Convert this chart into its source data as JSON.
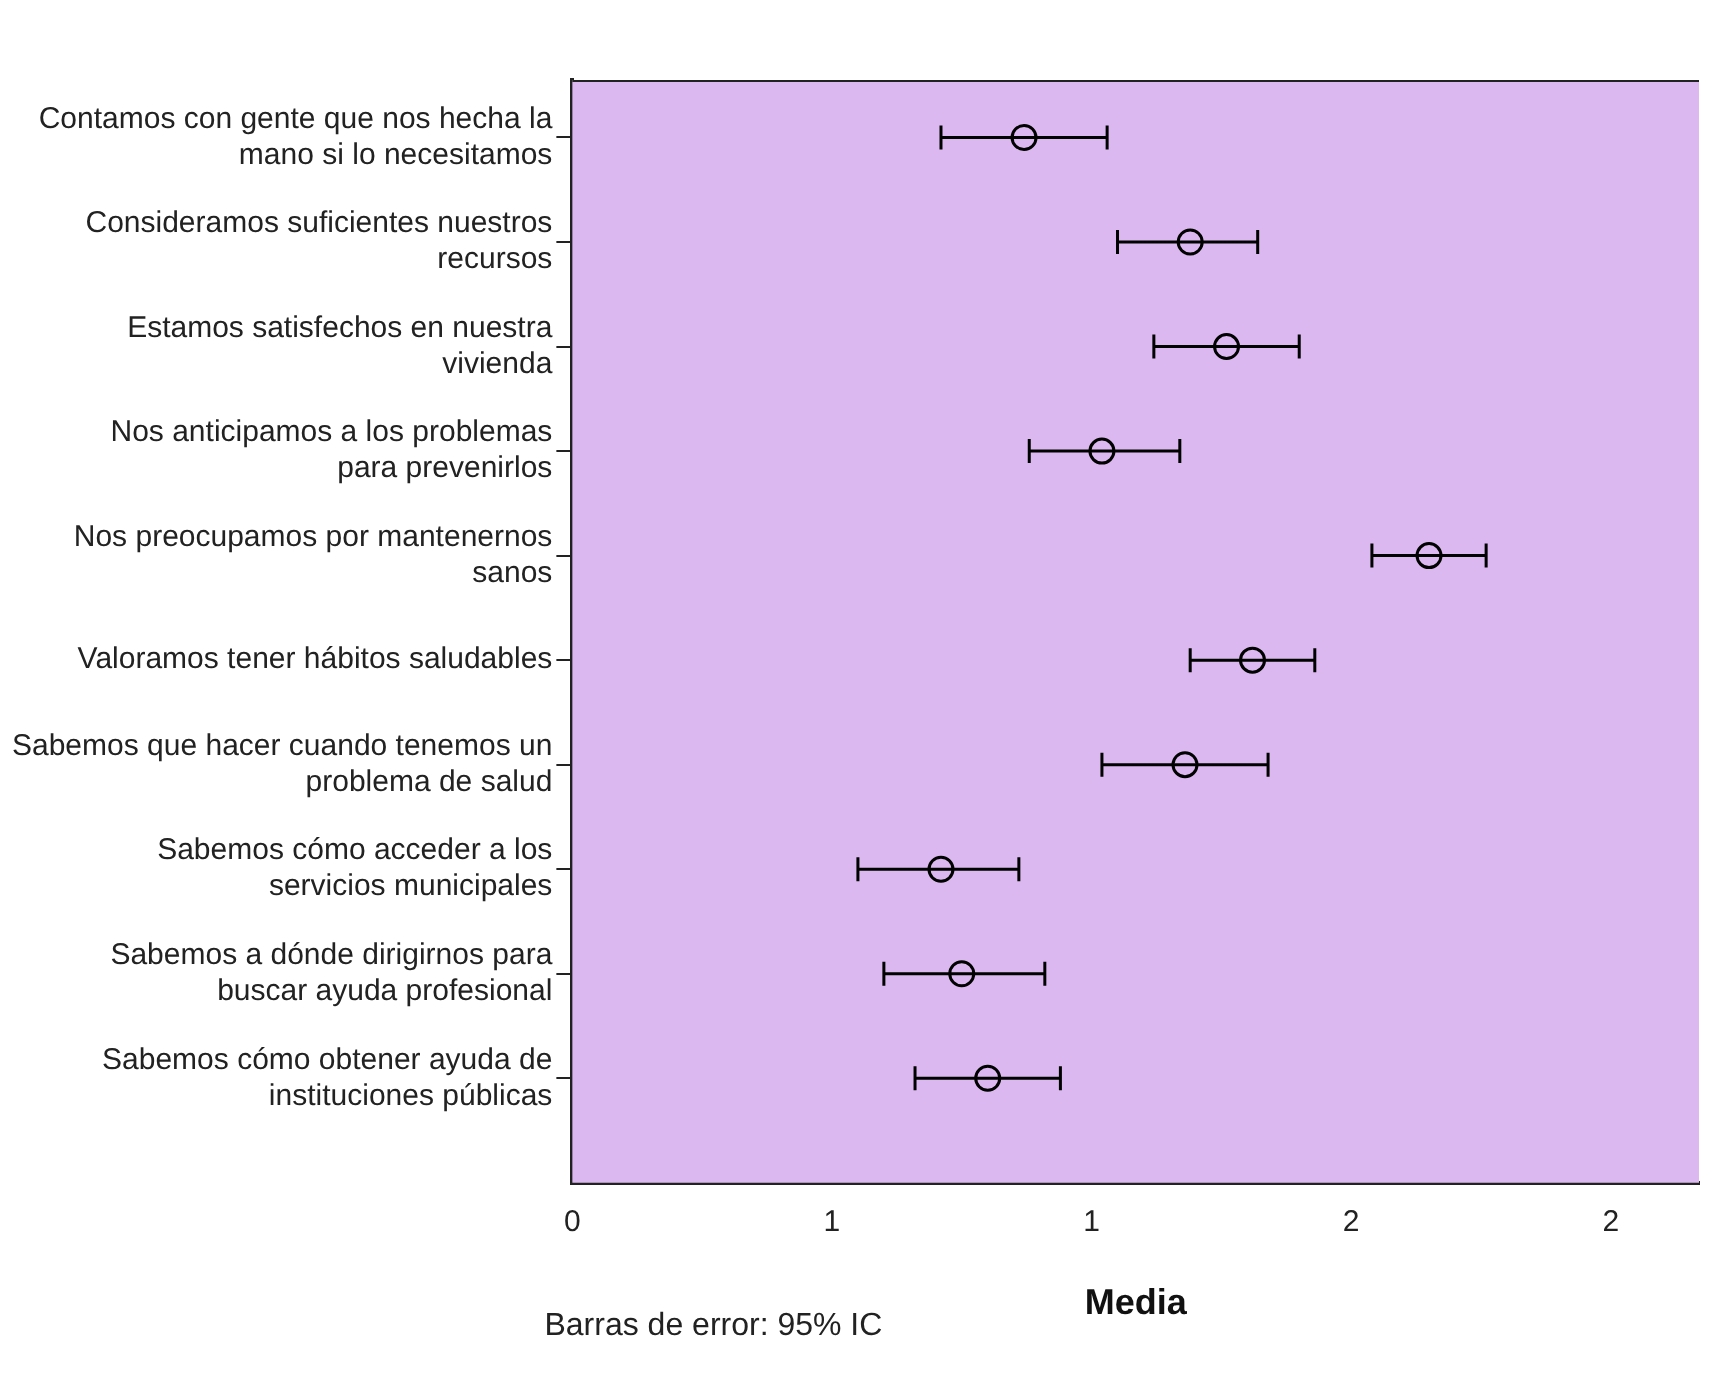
{
  "chart_data": {
    "type": "scatter",
    "orientation": "horizontal",
    "categories": [
      "Contamos con gente que nos hecha la mano si lo necesitamos",
      "Consideramos suficientes nuestros recursos",
      "Estamos satisfechos en nuestra vivienda",
      "Nos anticipamos a los problemas para prevenirlos",
      "Nos preocupamos por mantenernos sanos",
      "Valoramos tener hábitos saludables",
      "Sabemos que hacer cuando tenemos un problema de salud",
      "Sabemos cómo acceder a los servicios municipales",
      "Sabemos a dónde dirigirnos para buscar ayuda profesional",
      "Sabemos cómo obtener ayuda de instituciones públicas"
    ],
    "values": [
      0.87,
      1.19,
      1.26,
      1.02,
      1.65,
      1.31,
      1.18,
      0.71,
      0.75,
      0.8
    ],
    "errors": [
      [
        0.71,
        1.03
      ],
      [
        1.05,
        1.32
      ],
      [
        1.12,
        1.4
      ],
      [
        0.88,
        1.17
      ],
      [
        1.54,
        1.76
      ],
      [
        1.19,
        1.43
      ],
      [
        1.02,
        1.34
      ],
      [
        0.55,
        0.86
      ],
      [
        0.6,
        0.91
      ],
      [
        0.66,
        0.94
      ]
    ],
    "color": "#000000",
    "marker": "circle",
    "xlim": [
      0,
      2.17
    ],
    "xticks": [
      0,
      {
        "value": 0.5,
        "label": "1"
      },
      1,
      {
        "value": 1.5,
        "label": "2"
      },
      2
    ],
    "xlabel": "Media",
    "annotations": [
      "Barras de error: 95% IC"
    ],
    "legend": false,
    "grid": false
  }
}
